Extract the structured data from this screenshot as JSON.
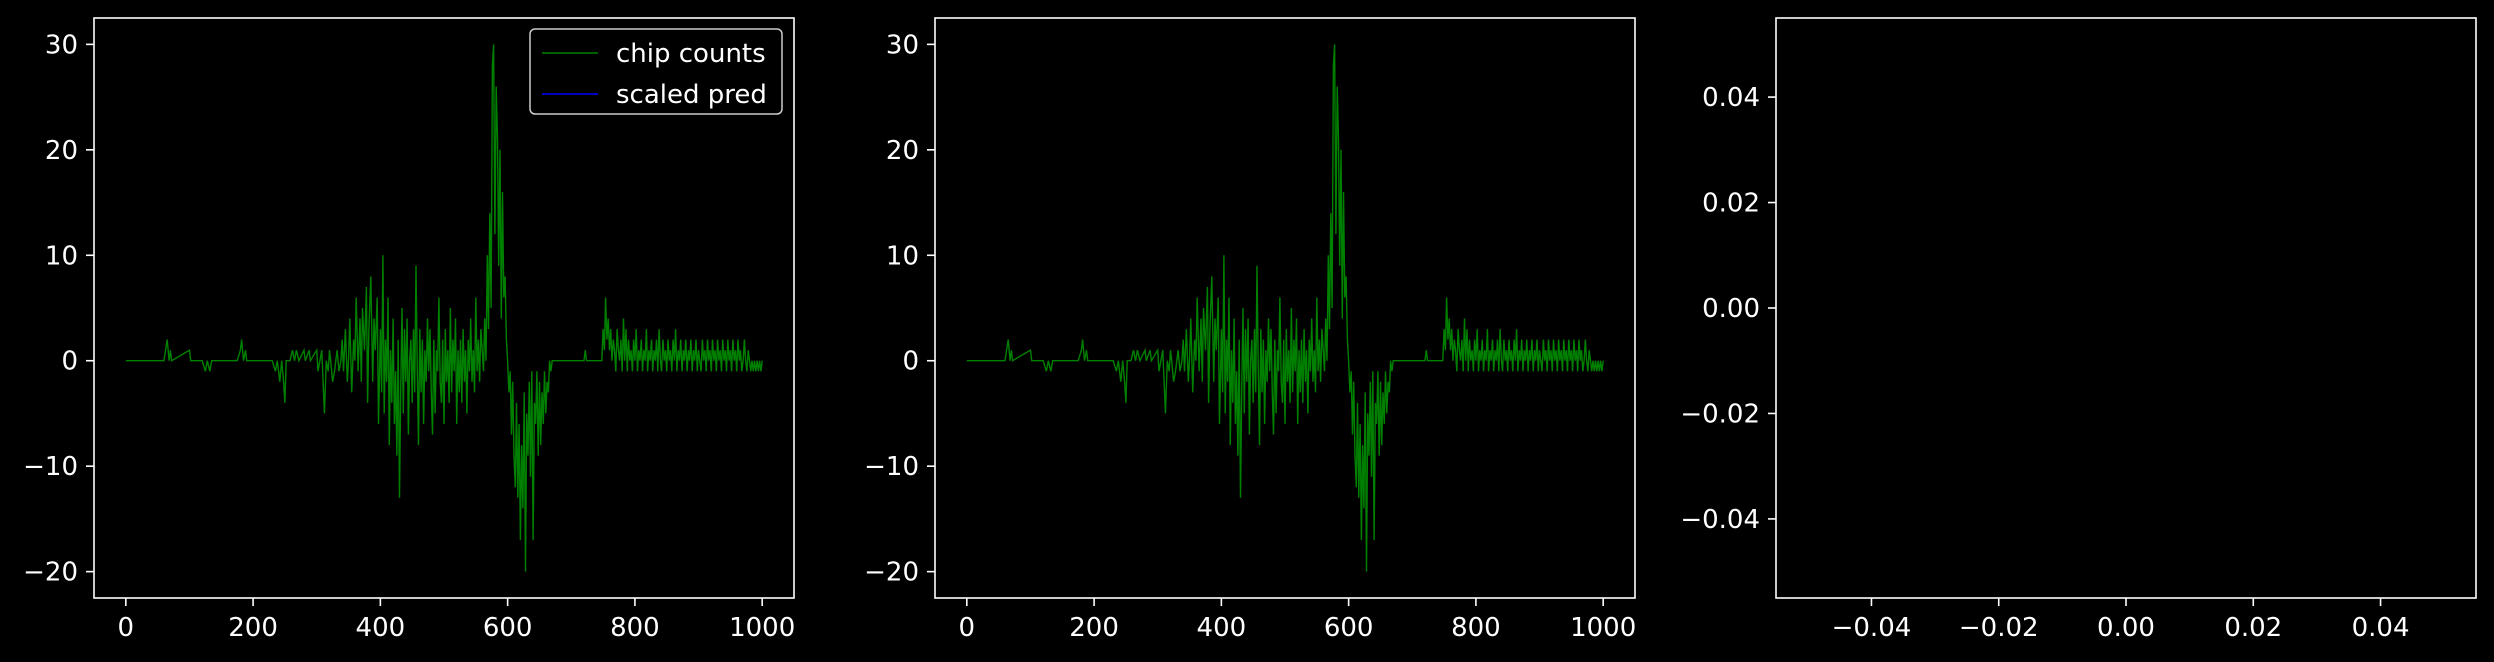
{
  "figure": {
    "background": "#000000",
    "foreground": "#ffffff"
  },
  "colors": {
    "chip_counts": "#008000",
    "scaled_pred": "#0000ff"
  },
  "chart_data": [
    {
      "type": "line",
      "title": "",
      "xlabel": "",
      "ylabel": "",
      "xlim": [
        -50,
        1050
      ],
      "ylim": [
        -22.5,
        32.5
      ],
      "xticks": [
        0,
        200,
        400,
        600,
        800,
        1000
      ],
      "xtick_labels": [
        "0",
        "200",
        "400",
        "600",
        "800",
        "1000"
      ],
      "yticks": [
        -20,
        -10,
        0,
        10,
        20,
        30
      ],
      "ytick_labels": [
        "−20",
        "−10",
        "0",
        "10",
        "20",
        "30"
      ],
      "grid": false,
      "legend": {
        "location": "top-right",
        "entries": [
          "chip counts",
          "scaled pred"
        ]
      },
      "series": [
        {
          "name": "chip counts",
          "color": "#008000",
          "points": "shared.chip_counts"
        },
        {
          "name": "scaled pred",
          "color": "#0000ff",
          "points": []
        }
      ]
    },
    {
      "type": "line",
      "title": "",
      "xlabel": "",
      "ylabel": "",
      "xlim": [
        -50,
        1050
      ],
      "ylim": [
        -22.5,
        32.5
      ],
      "xticks": [
        0,
        200,
        400,
        600,
        800,
        1000
      ],
      "xtick_labels": [
        "0",
        "200",
        "400",
        "600",
        "800",
        "1000"
      ],
      "yticks": [
        -20,
        -10,
        0,
        10,
        20,
        30
      ],
      "ytick_labels": [
        "−20",
        "−10",
        "0",
        "10",
        "20",
        "30"
      ],
      "grid": false,
      "series": [
        {
          "color": "#008000",
          "points": "shared.chip_counts"
        }
      ]
    },
    {
      "type": "line",
      "title": "",
      "xlabel": "",
      "ylabel": "",
      "xlim": [
        -0.055,
        0.055
      ],
      "ylim": [
        -0.055,
        0.055
      ],
      "xticks": [
        -0.04,
        -0.02,
        0.0,
        0.02,
        0.04
      ],
      "xtick_labels": [
        "−0.04",
        "−0.02",
        "0.00",
        "0.02",
        "0.04"
      ],
      "yticks": [
        -0.04,
        -0.02,
        0.0,
        0.02,
        0.04
      ],
      "ytick_labels": [
        "−0.04",
        "−0.02",
        "0.00",
        "0.02",
        "0.04"
      ],
      "grid": false,
      "series": []
    }
  ],
  "shared": {
    "chip_counts": [
      [
        0,
        0
      ],
      [
        60,
        0
      ],
      [
        65,
        2
      ],
      [
        68,
        0
      ],
      [
        70,
        1
      ],
      [
        72,
        0
      ],
      [
        100,
        1
      ],
      [
        102,
        0
      ],
      [
        120,
        0
      ],
      [
        125,
        -1
      ],
      [
        128,
        0
      ],
      [
        132,
        -1
      ],
      [
        135,
        0
      ],
      [
        175,
        0
      ],
      [
        180,
        1
      ],
      [
        182,
        2
      ],
      [
        185,
        0
      ],
      [
        188,
        1
      ],
      [
        190,
        0
      ],
      [
        230,
        0
      ],
      [
        235,
        -1
      ],
      [
        238,
        0
      ],
      [
        242,
        -2
      ],
      [
        245,
        0
      ],
      [
        248,
        -2
      ],
      [
        250,
        -4
      ],
      [
        252,
        0
      ],
      [
        258,
        0
      ],
      [
        262,
        1
      ],
      [
        265,
        0
      ],
      [
        268,
        1
      ],
      [
        272,
        0
      ],
      [
        280,
        1
      ],
      [
        282,
        0
      ],
      [
        288,
        1
      ],
      [
        290,
        0
      ],
      [
        300,
        1
      ],
      [
        302,
        -1
      ],
      [
        305,
        0
      ],
      [
        308,
        1
      ],
      [
        310,
        -2
      ],
      [
        312,
        -5
      ],
      [
        315,
        0
      ],
      [
        318,
        -1
      ],
      [
        320,
        1
      ],
      [
        322,
        0
      ],
      [
        325,
        -2
      ],
      [
        328,
        -1
      ],
      [
        330,
        0
      ],
      [
        332,
        1
      ],
      [
        335,
        -1
      ],
      [
        338,
        0
      ],
      [
        340,
        2
      ],
      [
        342,
        -1
      ],
      [
        345,
        3
      ],
      [
        348,
        -2
      ],
      [
        350,
        0
      ],
      [
        352,
        4
      ],
      [
        355,
        -3
      ],
      [
        358,
        2
      ],
      [
        360,
        0
      ],
      [
        362,
        6
      ],
      [
        365,
        -1
      ],
      [
        368,
        4
      ],
      [
        370,
        -2
      ],
      [
        372,
        5
      ],
      [
        375,
        1
      ],
      [
        378,
        7
      ],
      [
        380,
        -4
      ],
      [
        382,
        3
      ],
      [
        385,
        8
      ],
      [
        388,
        -2
      ],
      [
        390,
        4
      ],
      [
        392,
        1
      ],
      [
        395,
        6
      ],
      [
        397,
        -6
      ],
      [
        400,
        3
      ],
      [
        402,
        -3
      ],
      [
        404,
        10
      ],
      [
        406,
        -5
      ],
      [
        408,
        2
      ],
      [
        410,
        -2
      ],
      [
        412,
        6
      ],
      [
        414,
        -8
      ],
      [
        416,
        1
      ],
      [
        418,
        -4
      ],
      [
        420,
        4
      ],
      [
        422,
        -6
      ],
      [
        424,
        -1
      ],
      [
        426,
        -9
      ],
      [
        428,
        2
      ],
      [
        430,
        -13
      ],
      [
        432,
        -3
      ],
      [
        434,
        5
      ],
      [
        436,
        -5
      ],
      [
        438,
        3
      ],
      [
        440,
        -2
      ],
      [
        442,
        4
      ],
      [
        444,
        -7
      ],
      [
        446,
        0
      ],
      [
        448,
        2
      ],
      [
        450,
        -4
      ],
      [
        452,
        3
      ],
      [
        454,
        -3
      ],
      [
        456,
        9
      ],
      [
        458,
        -1
      ],
      [
        460,
        -8
      ],
      [
        462,
        3
      ],
      [
        464,
        -3
      ],
      [
        466,
        2
      ],
      [
        468,
        -6
      ],
      [
        470,
        1
      ],
      [
        472,
        -2
      ],
      [
        474,
        4
      ],
      [
        476,
        -1
      ],
      [
        478,
        3
      ],
      [
        480,
        -3
      ],
      [
        482,
        -7
      ],
      [
        484,
        2
      ],
      [
        486,
        -5
      ],
      [
        488,
        1
      ],
      [
        490,
        -1
      ],
      [
        492,
        6
      ],
      [
        494,
        -2
      ],
      [
        496,
        -4
      ],
      [
        498,
        2
      ],
      [
        500,
        -6
      ],
      [
        502,
        3
      ],
      [
        504,
        -2
      ],
      [
        506,
        1
      ],
      [
        508,
        -4
      ],
      [
        510,
        5
      ],
      [
        512,
        -3
      ],
      [
        514,
        2
      ],
      [
        516,
        -1
      ],
      [
        518,
        4
      ],
      [
        520,
        -6
      ],
      [
        522,
        1
      ],
      [
        524,
        -3
      ],
      [
        526,
        2
      ],
      [
        528,
        -4
      ],
      [
        530,
        3
      ],
      [
        532,
        -2
      ],
      [
        534,
        1
      ],
      [
        536,
        -5
      ],
      [
        538,
        2
      ],
      [
        540,
        -1
      ],
      [
        542,
        4
      ],
      [
        544,
        -2
      ],
      [
        546,
        1
      ],
      [
        548,
        -3
      ],
      [
        550,
        6
      ],
      [
        552,
        -1
      ],
      [
        554,
        2
      ],
      [
        556,
        -2
      ],
      [
        558,
        3
      ],
      [
        560,
        1
      ],
      [
        562,
        -1
      ],
      [
        564,
        4
      ],
      [
        566,
        0
      ],
      [
        568,
        10
      ],
      [
        570,
        3
      ],
      [
        572,
        14
      ],
      [
        574,
        5
      ],
      [
        576,
        28
      ],
      [
        578,
        30
      ],
      [
        580,
        12
      ],
      [
        582,
        26
      ],
      [
        584,
        21
      ],
      [
        586,
        9
      ],
      [
        588,
        20
      ],
      [
        590,
        4
      ],
      [
        592,
        16
      ],
      [
        594,
        6
      ],
      [
        596,
        8
      ],
      [
        598,
        2
      ],
      [
        600,
        0
      ],
      [
        602,
        -3
      ],
      [
        604,
        -1
      ],
      [
        606,
        -7
      ],
      [
        608,
        -2
      ],
      [
        610,
        -9
      ],
      [
        612,
        -12
      ],
      [
        614,
        -4
      ],
      [
        616,
        -13
      ],
      [
        618,
        -6
      ],
      [
        620,
        -17
      ],
      [
        622,
        -8
      ],
      [
        624,
        -14
      ],
      [
        626,
        -3
      ],
      [
        628,
        -20
      ],
      [
        630,
        -5
      ],
      [
        632,
        -9
      ],
      [
        634,
        -2
      ],
      [
        636,
        -11
      ],
      [
        638,
        -1
      ],
      [
        640,
        -17
      ],
      [
        642,
        -4
      ],
      [
        644,
        -6
      ],
      [
        646,
        -1
      ],
      [
        648,
        -9
      ],
      [
        650,
        -2
      ],
      [
        652,
        -8
      ],
      [
        654,
        -3
      ],
      [
        656,
        -6
      ],
      [
        658,
        -1
      ],
      [
        660,
        -5
      ],
      [
        662,
        -2
      ],
      [
        664,
        -3
      ],
      [
        666,
        0
      ],
      [
        668,
        -1
      ],
      [
        670,
        0
      ],
      [
        720,
        0
      ],
      [
        722,
        1
      ],
      [
        724,
        0
      ],
      [
        748,
        0
      ],
      [
        750,
        3
      ],
      [
        752,
        1
      ],
      [
        754,
        6
      ],
      [
        756,
        2
      ],
      [
        758,
        4
      ],
      [
        760,
        1
      ],
      [
        762,
        3
      ],
      [
        764,
        0
      ],
      [
        766,
        2
      ],
      [
        768,
        1
      ],
      [
        770,
        -1
      ],
      [
        772,
        3
      ],
      [
        774,
        1
      ],
      [
        776,
        0
      ],
      [
        778,
        2
      ],
      [
        780,
        -1
      ],
      [
        782,
        4
      ],
      [
        784,
        0
      ],
      [
        786,
        3
      ],
      [
        788,
        -1
      ],
      [
        790,
        2
      ],
      [
        792,
        0
      ],
      [
        794,
        1
      ],
      [
        796,
        -1
      ],
      [
        798,
        2
      ],
      [
        800,
        0
      ],
      [
        802,
        3
      ],
      [
        804,
        -1
      ],
      [
        806,
        1
      ],
      [
        808,
        0
      ],
      [
        810,
        2
      ],
      [
        812,
        -1
      ],
      [
        814,
        1
      ],
      [
        816,
        0
      ],
      [
        818,
        3
      ],
      [
        820,
        -1
      ],
      [
        822,
        1
      ],
      [
        824,
        0
      ],
      [
        826,
        2
      ],
      [
        828,
        -1
      ],
      [
        830,
        1
      ],
      [
        832,
        0
      ],
      [
        834,
        2
      ],
      [
        836,
        -1
      ],
      [
        838,
        3
      ],
      [
        840,
        0
      ],
      [
        842,
        -1
      ],
      [
        844,
        2
      ],
      [
        846,
        0
      ],
      [
        848,
        1
      ],
      [
        850,
        -1
      ],
      [
        852,
        2
      ],
      [
        854,
        0
      ],
      [
        856,
        1
      ],
      [
        858,
        -1
      ],
      [
        860,
        2
      ],
      [
        862,
        0
      ],
      [
        864,
        3
      ],
      [
        866,
        -1
      ],
      [
        868,
        1
      ],
      [
        870,
        0
      ],
      [
        872,
        2
      ],
      [
        874,
        -1
      ],
      [
        876,
        1
      ],
      [
        878,
        0
      ],
      [
        880,
        2
      ],
      [
        882,
        -1
      ],
      [
        884,
        1
      ],
      [
        886,
        0
      ],
      [
        888,
        2
      ],
      [
        890,
        -1
      ],
      [
        892,
        1
      ],
      [
        894,
        0
      ],
      [
        896,
        2
      ],
      [
        898,
        -1
      ],
      [
        900,
        1
      ],
      [
        902,
        0
      ],
      [
        904,
        -1
      ],
      [
        906,
        2
      ],
      [
        908,
        0
      ],
      [
        910,
        1
      ],
      [
        912,
        -1
      ],
      [
        914,
        2
      ],
      [
        916,
        0
      ],
      [
        918,
        1
      ],
      [
        920,
        -1
      ],
      [
        922,
        2
      ],
      [
        924,
        0
      ],
      [
        926,
        1
      ],
      [
        928,
        -1
      ],
      [
        930,
        2
      ],
      [
        932,
        0
      ],
      [
        934,
        1
      ],
      [
        936,
        -1
      ],
      [
        938,
        2
      ],
      [
        940,
        0
      ],
      [
        942,
        1
      ],
      [
        944,
        -1
      ],
      [
        946,
        2
      ],
      [
        948,
        0
      ],
      [
        950,
        1
      ],
      [
        952,
        -1
      ],
      [
        954,
        2
      ],
      [
        956,
        0
      ],
      [
        958,
        1
      ],
      [
        960,
        -1
      ],
      [
        962,
        2
      ],
      [
        964,
        0
      ],
      [
        966,
        1
      ],
      [
        968,
        -1
      ],
      [
        970,
        0
      ],
      [
        972,
        2
      ],
      [
        974,
        0
      ],
      [
        976,
        -1
      ],
      [
        978,
        1
      ],
      [
        980,
        0
      ],
      [
        982,
        -1
      ],
      [
        984,
        0
      ],
      [
        986,
        -1
      ],
      [
        988,
        0
      ],
      [
        990,
        -1
      ],
      [
        992,
        0
      ],
      [
        994,
        -1
      ],
      [
        996,
        0
      ],
      [
        998,
        -1
      ],
      [
        1000,
        0
      ]
    ]
  }
}
